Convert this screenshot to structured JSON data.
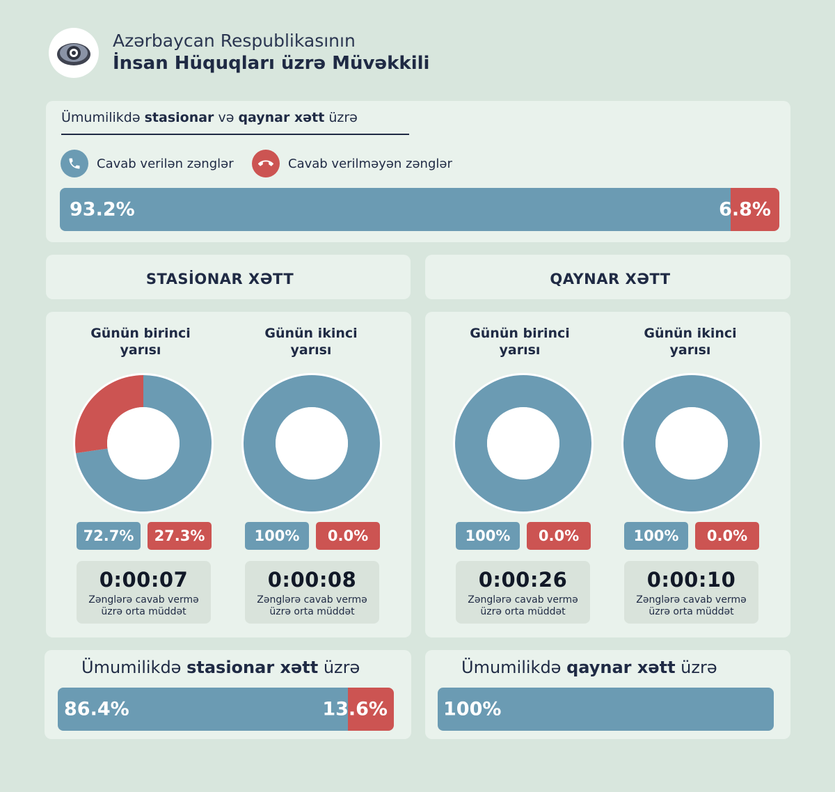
{
  "header": {
    "org_line1": "Azərbaycan Respublikasının",
    "org_line2": "İnsan Hüquqları üzrə Müvəkkili"
  },
  "colors": {
    "answered": "#6b9bb3",
    "unanswered": "#cc5452",
    "background": "#d8e6dd",
    "panel": "#e9f2ec"
  },
  "overall": {
    "title_pre": "Ümumilikdə ",
    "title_b1": "stasionar",
    "title_mid": " və ",
    "title_b2": "qaynar xətt",
    "title_post": " üzrə",
    "legend_answered": "Cavab verilən zənglər",
    "legend_unanswered": "Cavab verilməyən zənglər",
    "answered_label": "93.2%",
    "unanswered_label": "6.8%"
  },
  "sections": {
    "stationary_title": "STASİONAR XƏTT",
    "hotline_title": "QAYNAR XƏTT"
  },
  "donuts": [
    {
      "title_l1": "Günün birinci",
      "title_l2": "yarısı",
      "answered_label": "72.7%",
      "unanswered_label": "27.3%",
      "time": "0:00:07",
      "caption_l1": "Zənglərə cavab vermə",
      "caption_l2": "üzrə orta müddət"
    },
    {
      "title_l1": "Günün ikinci",
      "title_l2": "yarısı",
      "answered_label": "100%",
      "unanswered_label": "0.0%",
      "time": "0:00:08",
      "caption_l1": "Zənglərə cavab vermə",
      "caption_l2": "üzrə orta müddət"
    },
    {
      "title_l1": "Günün birinci",
      "title_l2": "yarısı",
      "answered_label": "100%",
      "unanswered_label": "0.0%",
      "time": "0:00:26",
      "caption_l1": "Zənglərə cavab vermə",
      "caption_l2": "üzrə orta müddət"
    },
    {
      "title_l1": "Günün ikinci",
      "title_l2": "yarısı",
      "answered_label": "100%",
      "unanswered_label": "0.0%",
      "time": "0:00:10",
      "caption_l1": "Zənglərə cavab vermə",
      "caption_l2": "üzrə orta müddət"
    }
  ],
  "stationary_total": {
    "title_pre": "Ümumilikdə ",
    "title_bold": "stasionar xətt",
    "title_post": " üzrə",
    "answered_label": "86.4%",
    "unanswered_label": "13.6%"
  },
  "hotline_total": {
    "title_pre": "Ümumilikdə ",
    "title_bold": "qaynar xətt",
    "title_post": " üzrə",
    "answered_label": "100%"
  },
  "chart_data": [
    {
      "type": "bar",
      "title": "Ümumilikdə stasionar və qaynar xətt üzrə",
      "categories": [
        "Cavab verilən zənglər",
        "Cavab verilməyən zənglər"
      ],
      "values": [
        93.2,
        6.8
      ],
      "stacked": true,
      "orientation": "horizontal"
    },
    {
      "type": "pie",
      "title": "Günün birinci yarısı",
      "section": "STASİONAR XƏTT",
      "categories": [
        "Cavab verilən zənglər",
        "Cavab verilməyən zənglər"
      ],
      "values": [
        72.7,
        27.3
      ],
      "donut": true
    },
    {
      "type": "pie",
      "title": "Günün ikinci yarısı",
      "section": "STASİONAR XƏTT",
      "categories": [
        "Cavab verilən zənglər",
        "Cavab verilməyən zənglər"
      ],
      "values": [
        100,
        0.0
      ],
      "donut": true
    },
    {
      "type": "pie",
      "title": "Günün birinci yarısı",
      "section": "QAYNAR XƏTT",
      "categories": [
        "Cavab verilən zənglər",
        "Cavab verilməyən zənglər"
      ],
      "values": [
        100,
        0.0
      ],
      "donut": true
    },
    {
      "type": "pie",
      "title": "Günün ikinci yarısı",
      "section": "QAYNAR XƏTT",
      "categories": [
        "Cavab verilən zənglər",
        "Cavab verilməyən zənglər"
      ],
      "values": [
        100,
        0.0
      ],
      "donut": true
    },
    {
      "type": "bar",
      "title": "Ümumilikdə stasionar xətt üzrə",
      "categories": [
        "Cavab verilən zənglər",
        "Cavab verilməyən zənglər"
      ],
      "values": [
        86.4,
        13.6
      ],
      "stacked": true,
      "orientation": "horizontal"
    },
    {
      "type": "bar",
      "title": "Ümumilikdə qaynar xətt üzrə",
      "categories": [
        "Cavab verilən zənglər"
      ],
      "values": [
        100
      ],
      "stacked": true,
      "orientation": "horizontal"
    }
  ]
}
